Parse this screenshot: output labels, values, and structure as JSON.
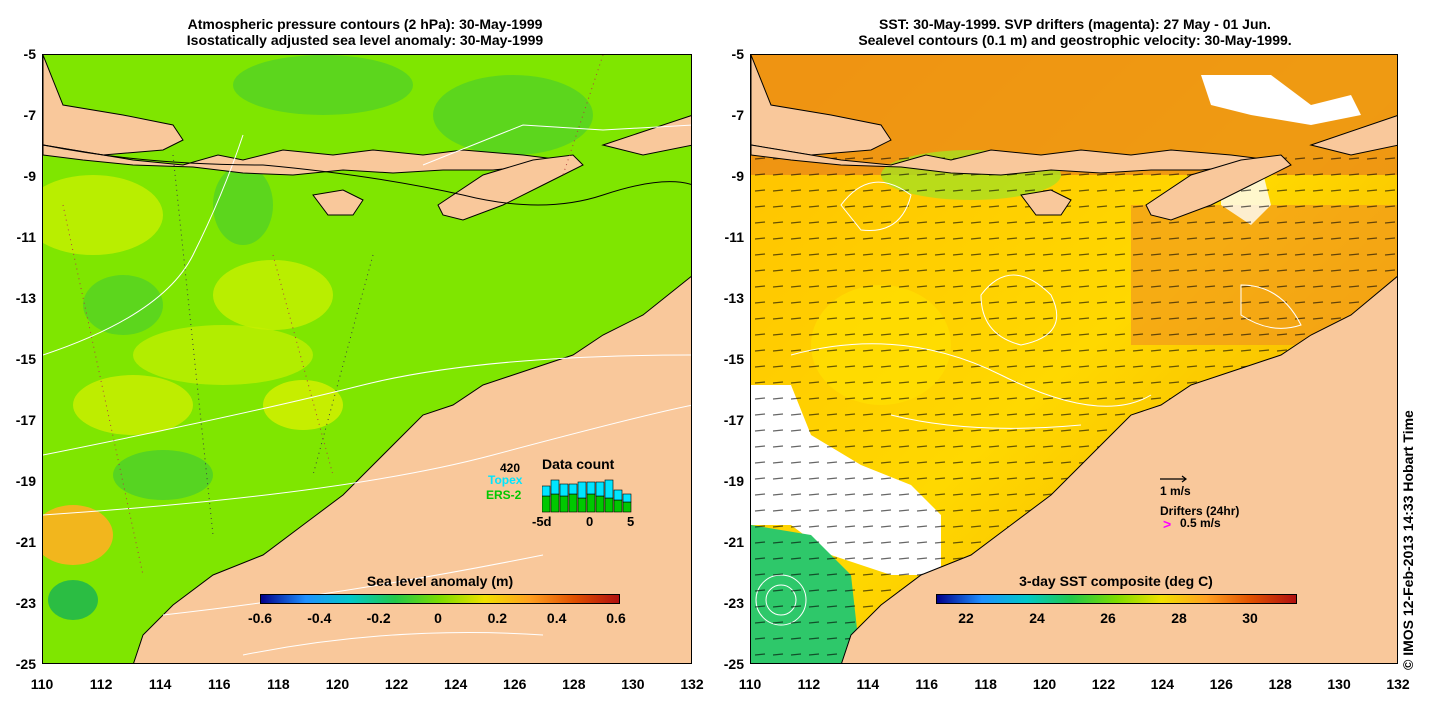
{
  "left_panel": {
    "title_line1": "Atmospheric pressure contours (2 hPa): 30-May-1999",
    "title_line2": "Isostatically adjusted sea level anomaly: 30-May-1999",
    "colorbar": {
      "title": "Sea level anomaly (m)",
      "ticks": [
        "-0.6",
        "-0.4",
        "-0.2",
        "0",
        "0.2",
        "0.4",
        "0.6"
      ],
      "colors": [
        "#00008b",
        "#1e90ff",
        "#00c8c8",
        "#22c84a",
        "#7ddc00",
        "#f0e000",
        "#ffa020",
        "#e05000",
        "#b01010"
      ]
    },
    "inset": {
      "count": "420",
      "topex_label": "Topex",
      "ers_label": "ERS-2",
      "title": "Data count",
      "x_ticks": [
        "-5d",
        "0",
        "5"
      ],
      "topex_color": "#00e5ff",
      "ers_color": "#00c800"
    }
  },
  "right_panel": {
    "title_line1": "SST: 30-May-1999. SVP drifters (magenta): 27 May - 01 Jun.",
    "title_line2": "Sealevel contours (0.1 m) and geostrophic velocity: 30-May-1999.",
    "colorbar": {
      "title": "3-day SST composite (deg C)",
      "ticks": [
        "22",
        "24",
        "26",
        "28",
        "30"
      ],
      "colors": [
        "#00008b",
        "#1e90ff",
        "#00c8c8",
        "#22c84a",
        "#7ddc00",
        "#f0e000",
        "#ffa020",
        "#e05000",
        "#b01010"
      ]
    },
    "velocity_scale_label": "1 m/s",
    "drifters_label": "Drifters (24hr)",
    "drifter_scale_label": "0.5 m/s",
    "drifter_symbol": ">"
  },
  "axes": {
    "lat_ticks": [
      "-5",
      "-7",
      "-9",
      "-11",
      "-13",
      "-15",
      "-17",
      "-19",
      "-21",
      "-23",
      "-25"
    ],
    "lon_ticks": [
      "110",
      "112",
      "114",
      "116",
      "118",
      "120",
      "122",
      "124",
      "126",
      "128",
      "130",
      "132"
    ]
  },
  "colors": {
    "land": "#f9c89b",
    "sea_green": "#7fe600",
    "sea_yellow": "#c8f000",
    "sst_orange": "#f0a000",
    "sst_yellow": "#ffd200"
  },
  "copyright": "© IMOS 12-Feb-2013 14:33 Hobart Time"
}
